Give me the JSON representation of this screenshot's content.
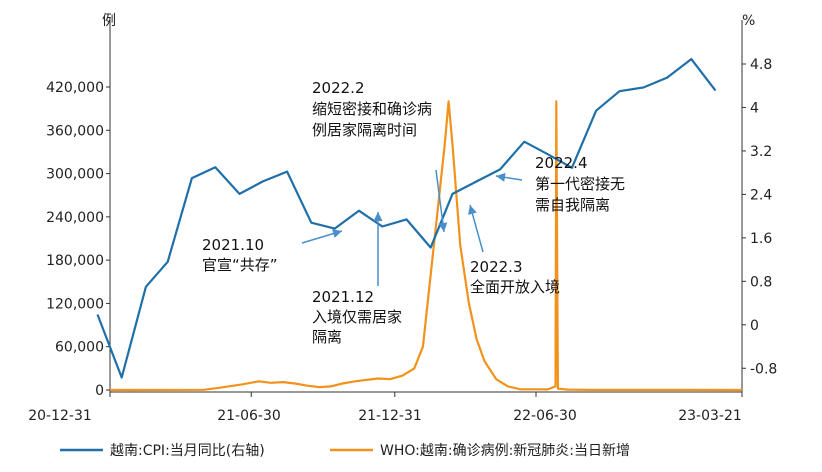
{
  "chart_data": {
    "type": "line",
    "left_unit": "例",
    "right_unit": "%",
    "x_tick_labels": [
      "20-12-31",
      "21-06-30",
      "21-12-31",
      "22-06-30",
      "23-03-21"
    ],
    "y_left_ticks": [
      "0",
      "60,000",
      "120,000",
      "180,000",
      "240,000",
      "300,000",
      "360,000",
      "420,000"
    ],
    "y_right_ticks": [
      "-0.8",
      "0",
      "0.8",
      "1.6",
      "2.4",
      "3.2",
      "4",
      "4.8"
    ],
    "ylim_left": [
      0,
      420000
    ],
    "ylim_right": [
      -1.2,
      4.8
    ],
    "grid": false,
    "legend_position": "bottom",
    "series": [
      {
        "name": "越南:CPI:当月同比(右轴)",
        "axis": "right",
        "color": "#1f6fa8",
        "x": [
          "2020-12",
          "2021-01",
          "2021-02",
          "2021-03",
          "2021-04",
          "2021-05",
          "2021-06",
          "2021-07",
          "2021-08",
          "2021-09",
          "2021-10",
          "2021-11",
          "2021-12",
          "2022-01",
          "2022-02",
          "2022-03",
          "2022-04",
          "2022-05",
          "2022-06",
          "2022-07",
          "2022-08",
          "2022-09",
          "2022-10",
          "2022-11",
          "2022-12",
          "2023-01",
          "2023-02"
        ],
        "values": [
          0.19,
          -0.97,
          0.7,
          1.16,
          2.7,
          2.9,
          2.41,
          2.64,
          2.82,
          1.88,
          1.77,
          2.1,
          1.81,
          1.94,
          1.42,
          2.41,
          2.64,
          2.86,
          3.37,
          3.14,
          2.89,
          3.94,
          4.3,
          4.37,
          4.55,
          4.89,
          4.31
        ]
      },
      {
        "name": "WHO:越南:确诊病例:新冠肺炎:当日新增",
        "axis": "left",
        "color": "#f2921c",
        "x": [
          "2020-12-31",
          "2021-04-30",
          "2021-05-20",
          "2021-06-20",
          "2021-07-10",
          "2021-07-25",
          "2021-08-10",
          "2021-08-25",
          "2021-09-10",
          "2021-09-25",
          "2021-10-10",
          "2021-10-25",
          "2021-11-10",
          "2021-11-25",
          "2021-12-10",
          "2021-12-25",
          "2022-01-10",
          "2022-01-25",
          "2022-02-05",
          "2022-02-15",
          "2022-02-25",
          "2022-03-05",
          "2022-03-10",
          "2022-03-15",
          "2022-03-25",
          "2022-04-05",
          "2022-04-15",
          "2022-04-25",
          "2022-05-10",
          "2022-05-25",
          "2022-06-10",
          "2022-06-30",
          "2022-07-15",
          "2022-07-25",
          "2022-07-26",
          "2022-07-28",
          "2022-08-10",
          "2022-09-10",
          "2022-12-31",
          "2023-03-21"
        ],
        "values": [
          0,
          300,
          3000,
          8000,
          12000,
          10000,
          11000,
          9000,
          6000,
          4000,
          5000,
          9000,
          12000,
          14000,
          16000,
          15000,
          20000,
          30000,
          60000,
          160000,
          260000,
          340000,
          400000,
          340000,
          200000,
          120000,
          70000,
          40000,
          15000,
          5000,
          1000,
          1000,
          800,
          5000,
          400000,
          2000,
          600,
          200,
          100,
          0
        ]
      }
    ],
    "annotations": [
      {
        "lines": [
          "2021.10",
          "官宣“共存”"
        ]
      },
      {
        "lines": [
          "2021.12",
          "入境仅需居家",
          "隔离"
        ]
      },
      {
        "lines": [
          "2022.2",
          "缩短密接和确诊病",
          "例居家隔离时间"
        ]
      },
      {
        "lines": [
          "2022.3",
          "全面开放入境"
        ]
      },
      {
        "lines": [
          "2022.4",
          "第一代密接无",
          "需自我隔离"
        ]
      }
    ]
  }
}
